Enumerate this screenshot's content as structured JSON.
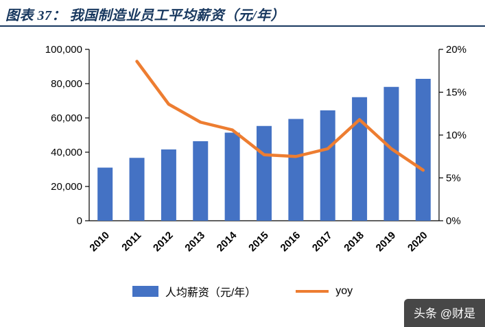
{
  "header": {
    "title": "图表 37：  我国制造业员工平均薪资（元/年）"
  },
  "chart_data": {
    "type": "bar",
    "title": "我国制造业员工平均薪资（元/年）",
    "categories": [
      "2010",
      "2011",
      "2012",
      "2013",
      "2014",
      "2015",
      "2016",
      "2017",
      "2018",
      "2019",
      "2020"
    ],
    "series": [
      {
        "name": "人均薪资（元/年）",
        "type": "bar",
        "axis": "left",
        "color": "#4472C4",
        "values": [
          31000,
          36700,
          41600,
          46400,
          51400,
          55300,
          59400,
          64400,
          72100,
          78100,
          82800
        ]
      },
      {
        "name": "yoy",
        "type": "line",
        "axis": "right",
        "color": "#ED7D31",
        "values": [
          null,
          18.6,
          13.6,
          11.5,
          10.6,
          7.7,
          7.5,
          8.4,
          11.8,
          8.4,
          5.9
        ]
      }
    ],
    "left_axis": {
      "min": 0,
      "max": 100000,
      "ticks": [
        0,
        20000,
        40000,
        60000,
        80000,
        100000
      ],
      "labels": [
        "0",
        "20,000",
        "40,000",
        "60,000",
        "80,000",
        "100,000"
      ]
    },
    "right_axis": {
      "min": 0,
      "max": 20,
      "ticks": [
        0,
        5,
        10,
        15,
        20
      ],
      "labels": [
        "0%",
        "5%",
        "10%",
        "15%",
        "20%"
      ]
    },
    "grid": "off",
    "legend_position": "bottom"
  },
  "legend": {
    "bar_label": "人均薪资（元/年）",
    "line_label": "yoy"
  },
  "watermark": {
    "text": "头条 @财是"
  }
}
